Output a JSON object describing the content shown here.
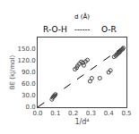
{
  "chart_data": {
    "type": "scatter",
    "annotations": [
      "d (Å)",
      "R-O-H",
      "------",
      "O-R"
    ],
    "xlabel": "1/d⁴",
    "ylabel": "BE (kJ/mol)",
    "xlim": [
      0.0,
      0.5
    ],
    "ylim": [
      0.0,
      180.0
    ],
    "xticks": [
      {
        "value": 0.0,
        "label": "0.0"
      },
      0.1,
      0.2,
      0.3,
      0.4,
      0.5
    ],
    "yticks": [
      {
        "value": 0.0,
        "label": "0.0"
      },
      {
        "value": 30.0,
        "label": "30.0"
      },
      {
        "value": 60.0,
        "label": "60.0"
      },
      {
        "value": 90.0,
        "label": "90.0"
      },
      {
        "value": 120.0,
        "label": "120.0"
      },
      {
        "value": 150.0,
        "label": "150.0"
      }
    ],
    "grid": false,
    "series": [
      {
        "type": "line",
        "x": [
          0.0,
          0.5
        ],
        "values": [
          0.0,
          162.0
        ],
        "color": "black",
        "line_style": "dashed"
      },
      {
        "type": "scatter",
        "x": [
          0.08,
          0.085,
          0.09,
          0.095,
          0.1,
          0.21,
          0.22,
          0.225,
          0.235,
          0.245,
          0.255,
          0.26,
          0.27,
          0.28,
          0.295,
          0.305,
          0.35,
          0.4,
          0.41,
          0.43,
          0.44,
          0.445,
          0.45,
          0.455,
          0.46,
          0.462,
          0.465,
          0.47,
          0.475,
          0.478,
          0.482
        ],
        "values": [
          20,
          25,
          28,
          30,
          33,
          98,
          102,
          107,
          112,
          117,
          115,
          108,
          118,
          122,
          67,
          75,
          75,
          90,
          95,
          130,
          133,
          136,
          138,
          140,
          142,
          143,
          145,
          147,
          149,
          150,
          153
        ],
        "color": "#444444",
        "marker": "open circle"
      }
    ]
  }
}
